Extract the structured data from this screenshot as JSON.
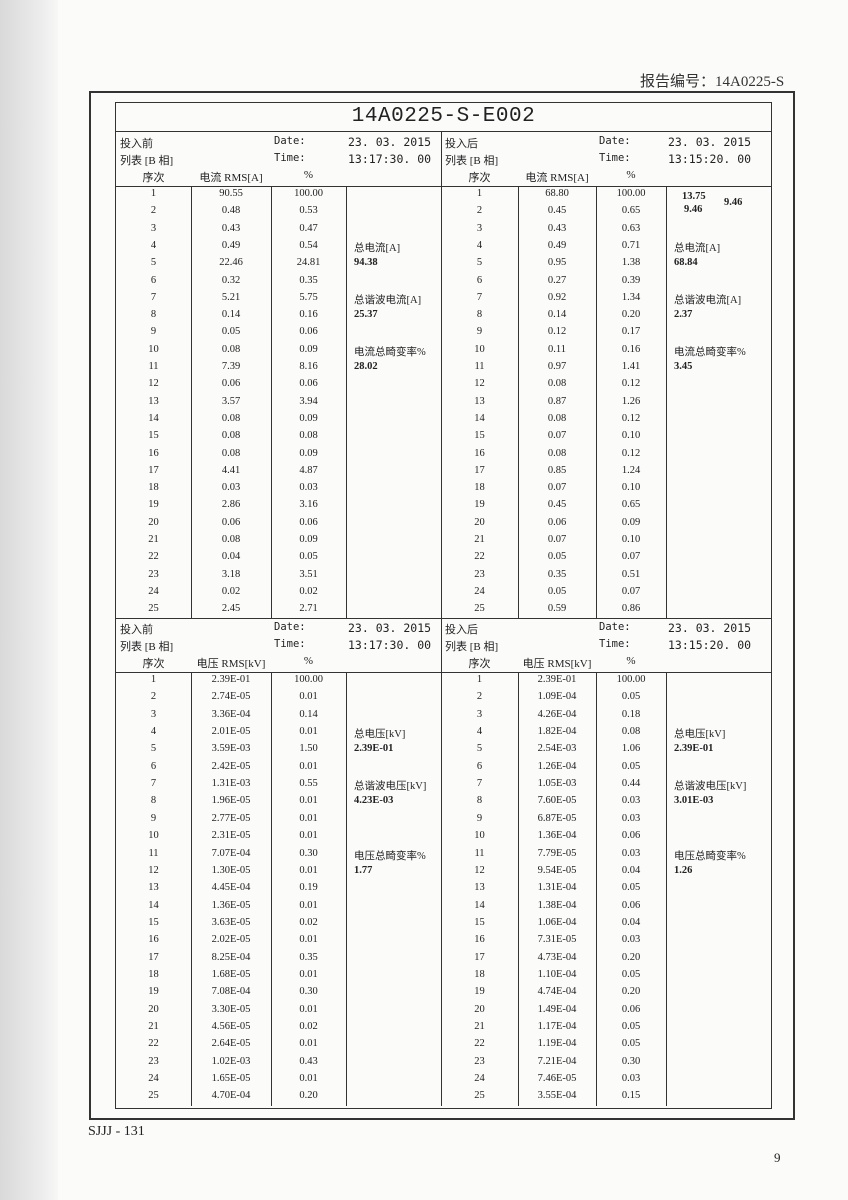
{
  "report_number": "报告编号：14A0225-S",
  "title": "14A0225-S-E002",
  "footer_code": "SJJJ - 131",
  "page_number": "9",
  "sections": [
    {
      "before": {
        "label": "投入前",
        "list": "列表 [B 相]",
        "date_label": "Date:",
        "date": "23. 03. 2015",
        "time_label": "Time:",
        "time": "13:17:30. 00",
        "col_seq": "序次",
        "col_rms": "电流 RMS[A]",
        "col_pct": "%",
        "rms": [
          "90.55",
          "0.48",
          "0.43",
          "0.49",
          "22.46",
          "0.32",
          "5.21",
          "0.14",
          "0.05",
          "0.08",
          "7.39",
          "0.06",
          "3.57",
          "0.08",
          "0.08",
          "0.08",
          "4.41",
          "0.03",
          "2.86",
          "0.06",
          "0.08",
          "0.04",
          "3.18",
          "0.02",
          "2.45"
        ],
        "pct": [
          "100.00",
          "0.53",
          "0.47",
          "0.54",
          "24.81",
          "0.35",
          "5.75",
          "0.16",
          "0.06",
          "0.09",
          "8.16",
          "0.06",
          "3.94",
          "0.09",
          "0.08",
          "0.09",
          "4.87",
          "0.03",
          "3.16",
          "0.06",
          "0.09",
          "0.05",
          "3.51",
          "0.02",
          "2.71"
        ],
        "summary": [
          {
            "label": "总电流[A]",
            "value": "94.38"
          },
          {
            "label": "总谐波电流[A]",
            "value": "25.37"
          },
          {
            "label": "电流总畸变率%",
            "value": "28.02"
          }
        ],
        "extra": []
      },
      "after": {
        "label": "投入后",
        "list": "列表 [B 相]",
        "date_label": "Date:",
        "date": "23. 03. 2015",
        "time_label": "Time:",
        "time": "13:15:20. 00",
        "col_seq": "序次",
        "col_rms": "电流 RMS[A]",
        "col_pct": "%",
        "rms": [
          "68.80",
          "0.45",
          "0.43",
          "0.49",
          "0.95",
          "0.27",
          "0.92",
          "0.14",
          "0.12",
          "0.11",
          "0.97",
          "0.08",
          "0.87",
          "0.08",
          "0.07",
          "0.08",
          "0.85",
          "0.07",
          "0.45",
          "0.06",
          "0.07",
          "0.05",
          "0.35",
          "0.05",
          "0.59"
        ],
        "pct": [
          "100.00",
          "0.65",
          "0.63",
          "0.71",
          "1.38",
          "0.39",
          "1.34",
          "0.20",
          "0.17",
          "0.16",
          "1.41",
          "0.12",
          "1.26",
          "0.12",
          "0.10",
          "0.12",
          "1.24",
          "0.10",
          "0.65",
          "0.09",
          "0.10",
          "0.07",
          "0.51",
          "0.07",
          "0.86"
        ],
        "summary": [
          {
            "label": "总电流[A]",
            "value": "68.84"
          },
          {
            "label": "总谐波电流[A]",
            "value": "2.37"
          },
          {
            "label": "电流总畸变率%",
            "value": "3.45"
          }
        ],
        "extra": [
          "13.75",
          "9.46",
          "9.46"
        ]
      }
    },
    {
      "before": {
        "label": "投入前",
        "list": "列表 [B 相]",
        "date_label": "Date:",
        "date": "23. 03. 2015",
        "time_label": "Time:",
        "time": "13:17:30. 00",
        "col_seq": "序次",
        "col_rms": "电压 RMS[kV]",
        "col_pct": "%",
        "rms": [
          "2.39E-01",
          "2.74E-05",
          "3.36E-04",
          "2.01E-05",
          "3.59E-03",
          "2.42E-05",
          "1.31E-03",
          "1.96E-05",
          "2.77E-05",
          "2.31E-05",
          "7.07E-04",
          "1.30E-05",
          "4.45E-04",
          "1.36E-05",
          "3.63E-05",
          "2.02E-05",
          "8.25E-04",
          "1.68E-05",
          "7.08E-04",
          "3.30E-05",
          "4.56E-05",
          "2.64E-05",
          "1.02E-03",
          "1.65E-05",
          "4.70E-04"
        ],
        "pct": [
          "100.00",
          "0.01",
          "0.14",
          "0.01",
          "1.50",
          "0.01",
          "0.55",
          "0.01",
          "0.01",
          "0.01",
          "0.30",
          "0.01",
          "0.19",
          "0.01",
          "0.02",
          "0.01",
          "0.35",
          "0.01",
          "0.30",
          "0.01",
          "0.02",
          "0.01",
          "0.43",
          "0.01",
          "0.20"
        ],
        "summary": [
          {
            "label": "总电压[kV]",
            "value": "2.39E-01"
          },
          {
            "label": "总谐波电压[kV]",
            "value": "4.23E-03"
          },
          {
            "label": "电压总畸变率%",
            "value": "1.77"
          }
        ],
        "extra": []
      },
      "after": {
        "label": "投入后",
        "list": "列表 [B 相]",
        "date_label": "Date:",
        "date": "23. 03. 2015",
        "time_label": "Time:",
        "time": "13:15:20. 00",
        "col_seq": "序次",
        "col_rms": "电压 RMS[kV]",
        "col_pct": "%",
        "rms": [
          "2.39E-01",
          "1.09E-04",
          "4.26E-04",
          "1.82E-04",
          "2.54E-03",
          "1.26E-04",
          "1.05E-03",
          "7.60E-05",
          "6.87E-05",
          "1.36E-04",
          "7.79E-05",
          "9.54E-05",
          "1.31E-04",
          "1.38E-04",
          "1.06E-04",
          "7.31E-05",
          "4.73E-04",
          "1.10E-04",
          "4.74E-04",
          "1.49E-04",
          "1.17E-04",
          "1.19E-04",
          "7.21E-04",
          "7.46E-05",
          "3.55E-04"
        ],
        "pct": [
          "100.00",
          "0.05",
          "0.18",
          "0.08",
          "1.06",
          "0.05",
          "0.44",
          "0.03",
          "0.03",
          "0.06",
          "0.03",
          "0.04",
          "0.05",
          "0.06",
          "0.04",
          "0.03",
          "0.20",
          "0.05",
          "0.20",
          "0.06",
          "0.05",
          "0.05",
          "0.30",
          "0.03",
          "0.15"
        ],
        "summary": [
          {
            "label": "总电压[kV]",
            "value": "2.39E-01"
          },
          {
            "label": "总谐波电压[kV]",
            "value": "3.01E-03"
          },
          {
            "label": "电压总畸变率%",
            "value": "1.26"
          }
        ],
        "extra": []
      }
    }
  ]
}
